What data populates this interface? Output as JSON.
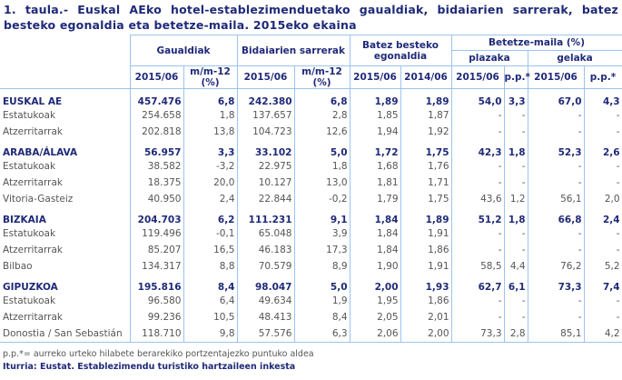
{
  "title": "1. taula.- Euskal AEko hotel-establezimenduetako gaualdiak, bidaiarien sarrerak, batez besteko egonaldia eta betetze-maila. 2015eko ekaina",
  "headers": {
    "gaualdiak": "Gaualdiak",
    "bidaiarien": "Bidaiarien sarrerak",
    "batez": "Batez besteko egonaldia",
    "betetze": "Betetze-maila (%)",
    "plazaka": "plazaka",
    "gelaka": "gelaka",
    "cols": [
      "2015/06",
      "m/m-12 (%)",
      "2015/06",
      "m/m-12 (%)",
      "2015/06",
      "2014/06",
      "2015/06",
      "p.p.*",
      "2015/06",
      "p.p.*"
    ]
  },
  "rows": [
    {
      "bold": true,
      "cells": [
        "EUSKAL AE",
        "457.476",
        "6,8",
        "242.380",
        "6,8",
        "1,89",
        "1,89",
        "54,0",
        "3,3",
        "67,0",
        "4,3"
      ]
    },
    {
      "bold": false,
      "cells": [
        "Estatukoak",
        "254.658",
        "1,8",
        "137.657",
        "2,8",
        "1,85",
        "1,87",
        "-",
        "-",
        "-",
        "-"
      ]
    },
    {
      "bold": false,
      "cells": [
        "Atzerritarrak",
        "202.818",
        "13,8",
        "104.723",
        "12,6",
        "1,94",
        "1,92",
        "-",
        "-",
        "-",
        "-"
      ]
    },
    {
      "bold": true,
      "cells": [
        "ARABA/ÁLAVA",
        "56.957",
        "3,3",
        "33.102",
        "5,0",
        "1,72",
        "1,75",
        "42,3",
        "1,8",
        "52,3",
        "2,6"
      ]
    },
    {
      "bold": false,
      "cells": [
        "Estatukoak",
        "38.582",
        "-3,2",
        "22.975",
        "1,8",
        "1,68",
        "1,76",
        "-",
        "-",
        "-",
        "-"
      ]
    },
    {
      "bold": false,
      "cells": [
        "Atzerritarrak",
        "18.375",
        "20,0",
        "10.127",
        "13,0",
        "1,81",
        "1,71",
        "-",
        "-",
        "-",
        "-"
      ]
    },
    {
      "bold": false,
      "cells": [
        "Vitoria-Gasteiz",
        "40.950",
        "2,4",
        "22.844",
        "-0,2",
        "1,79",
        "1,75",
        "43,6",
        "1,2",
        "56,1",
        "2,0"
      ]
    },
    {
      "bold": true,
      "cells": [
        "BIZKAIA",
        "204.703",
        "6,2",
        "111.231",
        "9,1",
        "1,84",
        "1,89",
        "51,2",
        "1,8",
        "66,8",
        "2,4"
      ]
    },
    {
      "bold": false,
      "cells": [
        "Estatukoak",
        "119.496",
        "-0,1",
        "65.048",
        "3,9",
        "1,84",
        "1,91",
        "-",
        "-",
        "-",
        "-"
      ]
    },
    {
      "bold": false,
      "cells": [
        "Atzerritarrak",
        "85.207",
        "16,5",
        "46.183",
        "17,3",
        "1,84",
        "1,86",
        "-",
        "-",
        "-",
        "-"
      ]
    },
    {
      "bold": false,
      "cells": [
        "Bilbao",
        "134.317",
        "8,8",
        "70.579",
        "8,9",
        "1,90",
        "1,91",
        "58,5",
        "4,4",
        "76,2",
        "5,2"
      ]
    },
    {
      "bold": true,
      "cells": [
        "GIPUZKOA",
        "195.816",
        "8,4",
        "98.047",
        "5,0",
        "2,00",
        "1,93",
        "62,7",
        "6,1",
        "73,3",
        "7,4"
      ]
    },
    {
      "bold": false,
      "cells": [
        "Estatukoak",
        "96.580",
        "6,4",
        "49.634",
        "1,9",
        "1,95",
        "1,86",
        "-",
        "-",
        "-",
        "-"
      ]
    },
    {
      "bold": false,
      "cells": [
        "Atzerritarrak",
        "99.236",
        "10,5",
        "48.413",
        "8,4",
        "2,05",
        "2,01",
        "-",
        "-",
        "-",
        "-"
      ]
    },
    {
      "bold": false,
      "cells": [
        "Donostia / San Sebastián",
        "118.710",
        "9,8",
        "57.576",
        "6,3",
        "2,06",
        "2,00",
        "73,3",
        "2,8",
        "85,1",
        "4,2"
      ]
    }
  ],
  "footnote": "p.p.*= aurreko urteko hilabete berarekiko portzentajezko puntuko aldea",
  "source": "Iturria: Eustat. Establezimendu turistiko hartzaileen inkesta"
}
